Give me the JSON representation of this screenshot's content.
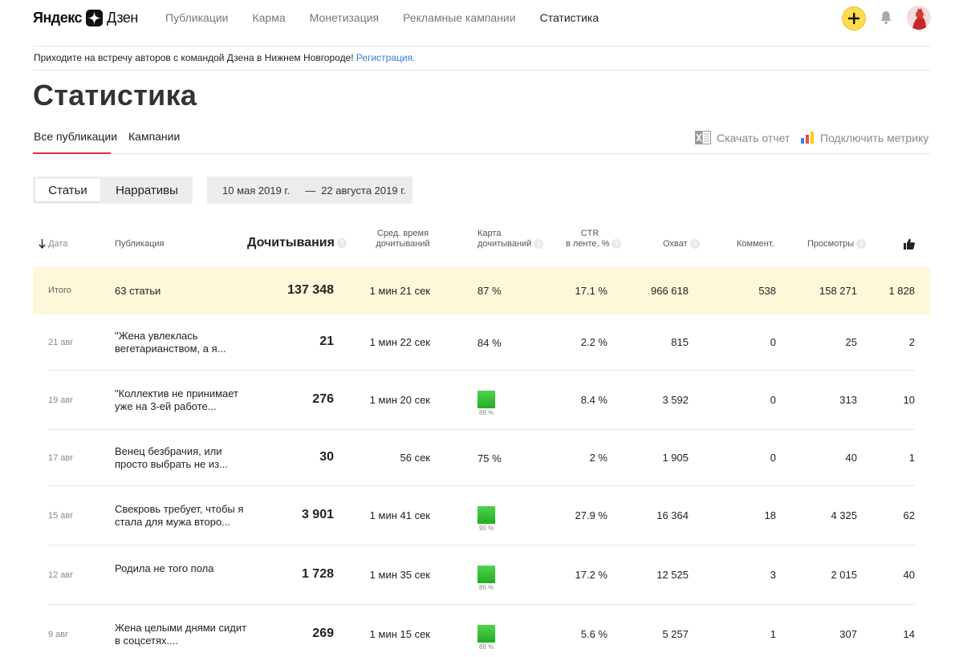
{
  "header": {
    "logo_left": "Яндекс",
    "logo_right": "Дзен",
    "nav": [
      "Публикации",
      "Карма",
      "Монетизация",
      "Рекламные кампании",
      "Статистика"
    ],
    "active_nav": "Статистика",
    "accent": "#ffdb4d"
  },
  "announcement": {
    "text": "Приходите на встречу авторов с командой Дзена в Нижнем Новгороде!",
    "link": "Регистрация."
  },
  "page_title": "Статистика",
  "tabs": [
    "Все публикации",
    "Кампании"
  ],
  "tools": {
    "report": "Скачать отчет",
    "metrika": "Подключить метрику"
  },
  "filters": {
    "type_on": "Статьи",
    "type_off": "Нарративы",
    "date_from": "10 мая 2019 г.",
    "date_sep": "—",
    "date_to": "22 августа 2019 г."
  },
  "columns": {
    "date": "Дата",
    "publication": "Публикация",
    "reads": "Дочитывания",
    "avg_time_1": "Сред. время",
    "avg_time_2": "дочитываний",
    "map_1": "Карта",
    "map_2": "дочитываний",
    "ctr_1": "CTR",
    "ctr_2": "в ленте, %",
    "reach": "Охват",
    "comments": "Коммент.",
    "views": "Просмотры"
  },
  "total": {
    "label": "Итого",
    "title": "63 статьи",
    "reads": "137 348",
    "avg_time": "1 мин 21 сек",
    "map": "87 %",
    "ctr": "17.1 %",
    "reach": "966 618",
    "comments": "538",
    "views": "158 271",
    "likes": "1 828"
  },
  "rows": [
    {
      "date": "21 авг",
      "title": "\"Жена увлеклась вегетарианством, а я...",
      "reads": "21",
      "avg_time": "1 мин 22 сек",
      "map": "84 %",
      "map_bar": false,
      "ctr": "2.2 %",
      "reach": "815",
      "comments": "0",
      "views": "25",
      "likes": "2"
    },
    {
      "date": "19 авг",
      "title": "\"Коллектив не принимает уже на 3-ей работе...",
      "reads": "276",
      "avg_time": "1 мин 20 сек",
      "map": "88 %",
      "map_bar": true,
      "ctr": "8.4 %",
      "reach": "3 592",
      "comments": "0",
      "views": "313",
      "likes": "10"
    },
    {
      "date": "17 авг",
      "title": "Венец безбрачия, или просто выбрать не из...",
      "reads": "30",
      "avg_time": "56 сек",
      "map": "75 %",
      "map_bar": false,
      "ctr": "2 %",
      "reach": "1 905",
      "comments": "0",
      "views": "40",
      "likes": "1"
    },
    {
      "date": "15 авг",
      "title": "Свекровь требует, чтобы я стала для мужа второ...",
      "reads": "3 901",
      "avg_time": "1 мин 41 сек",
      "map": "90 %",
      "map_bar": true,
      "ctr": "27.9 %",
      "reach": "16 364",
      "comments": "18",
      "views": "4 325",
      "likes": "62"
    },
    {
      "date": "12 авг",
      "title": "Родила не того пола",
      "reads": "1 728",
      "avg_time": "1 мин 35 сек",
      "map": "86 %",
      "map_bar": true,
      "ctr": "17.2 %",
      "reach": "12 525",
      "comments": "3",
      "views": "2 015",
      "likes": "40"
    },
    {
      "date": "9 авг",
      "title": "Жена целыми днями сидит в соцсетях....",
      "reads": "269",
      "avg_time": "1 мин 15 сек",
      "map": "88 %",
      "map_bar": true,
      "ctr": "5.6 %",
      "reach": "5 257",
      "comments": "1",
      "views": "307",
      "likes": "14"
    }
  ]
}
